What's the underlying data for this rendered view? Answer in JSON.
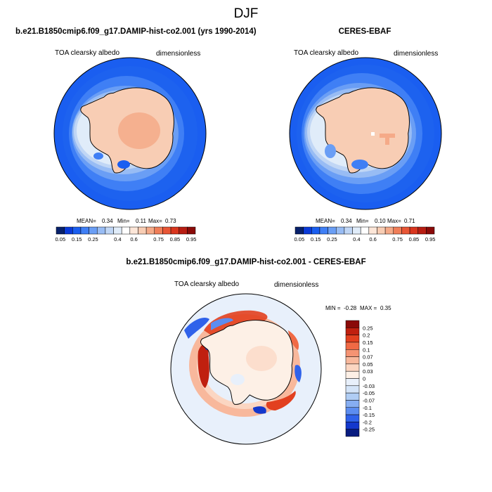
{
  "page": {
    "season": "DJF"
  },
  "chart_data": [
    {
      "type": "heatmap",
      "projection": "south-polar-stereographic",
      "title": "b.e21.B1850cmip6.f09_g17.DAMIP-hist-co2.001 (yrs 1990-2014)",
      "left_label": "TOA clearsky albedo",
      "right_label": "dimensionless",
      "stats": {
        "mean_label": "MEAN=",
        "mean": "0.34",
        "min_label": "Min=",
        "min": "0.11",
        "max_label": "Max=",
        "max": "0.73"
      },
      "colorbar": {
        "orientation": "horizontal",
        "levels": [
          0.05,
          0.1,
          0.15,
          0.2,
          0.25,
          0.3,
          0.35,
          0.4,
          0.5,
          0.6,
          0.65,
          0.7,
          0.75,
          0.8,
          0.85,
          0.9,
          0.95
        ],
        "tick_labels": [
          "0.05",
          "0.15",
          "0.25",
          "0.4",
          "0.6",
          "0.75",
          "0.85",
          "0.95"
        ],
        "colors": [
          "#08216b",
          "#0a3ad8",
          "#1a5ef0",
          "#3f7ff5",
          "#6a9ef5",
          "#98bcf4",
          "#c0d6f5",
          "#e0ecf9",
          "#ffffff",
          "#fce6d8",
          "#f8cdb4",
          "#f5aa88",
          "#f07e58",
          "#e85636",
          "#d9361e",
          "#b81d12",
          "#8a0a08"
        ]
      },
      "regions": {
        "ocean": 0.15,
        "sea_ice": 0.45,
        "antarctica": 0.65
      }
    },
    {
      "type": "heatmap",
      "projection": "south-polar-stereographic",
      "title": "CERES-EBAF",
      "left_label": "TOA clearsky albedo",
      "right_label": "dimensionless",
      "stats": {
        "mean_label": "MEAN=",
        "mean": "0.34",
        "min_label": "Min=",
        "min": "0.10",
        "max_label": "Max=",
        "max": "0.71"
      },
      "colorbar": {
        "orientation": "horizontal",
        "levels": [
          0.05,
          0.1,
          0.15,
          0.2,
          0.25,
          0.3,
          0.35,
          0.4,
          0.5,
          0.6,
          0.65,
          0.7,
          0.75,
          0.8,
          0.85,
          0.9,
          0.95
        ],
        "tick_labels": [
          "0.05",
          "0.15",
          "0.25",
          "0.4",
          "0.6",
          "0.75",
          "0.85",
          "0.95"
        ],
        "colors": [
          "#08216b",
          "#0a3ad8",
          "#1a5ef0",
          "#3f7ff5",
          "#6a9ef5",
          "#98bcf4",
          "#c0d6f5",
          "#e0ecf9",
          "#ffffff",
          "#fce6d8",
          "#f8cdb4",
          "#f5aa88",
          "#f07e58",
          "#e85636",
          "#d9361e",
          "#b81d12",
          "#8a0a08"
        ]
      },
      "regions": {
        "ocean": 0.15,
        "sea_ice": 0.45,
        "antarctica": 0.62
      }
    },
    {
      "type": "heatmap",
      "projection": "south-polar-stereographic",
      "title": "b.e21.B1850cmip6.f09_g17.DAMIP-hist-co2.001 - CERES-EBAF",
      "left_label": "TOA clearsky albedo",
      "right_label": "dimensionless",
      "stats": {
        "min_label": "MIN =",
        "min": "-0.28",
        "max_label": "MAX =",
        "max": "0.35"
      },
      "colorbar": {
        "orientation": "vertical",
        "tick_labels": [
          "0.25",
          "0.2",
          "0.15",
          "0.1",
          "0.07",
          "0.05",
          "0.03",
          "0",
          "-0.03",
          "-0.05",
          "-0.07",
          "-0.1",
          "-0.15",
          "-0.2",
          "-0.25"
        ],
        "colors": [
          "#8a0a08",
          "#c0200f",
          "#e2401f",
          "#f06a45",
          "#f59373",
          "#f8b89c",
          "#fbd6c2",
          "#fdf0e6",
          "#e8f0fb",
          "#d4e4f8",
          "#b0cdf4",
          "#86aef2",
          "#5c8df0",
          "#2f62ea",
          "#1438cc",
          "#081c80"
        ]
      },
      "regions": {
        "ocean": 0.0,
        "antarctica": 0.03
      }
    }
  ]
}
